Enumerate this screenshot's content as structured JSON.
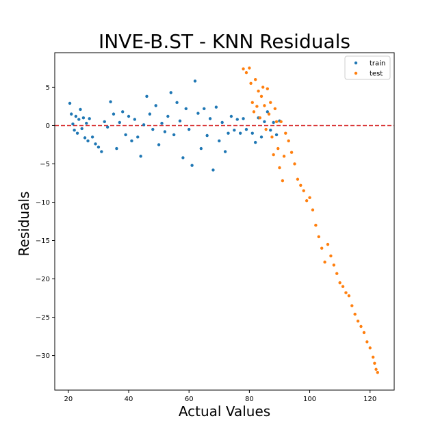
{
  "chart_data": {
    "type": "scatter",
    "title": "INVE-B.ST - KNN Residuals",
    "xlabel": "Actual Values",
    "ylabel": "Residuals",
    "xlim": [
      15.5,
      128
    ],
    "ylim": [
      -34.5,
      9.5
    ],
    "xticks": [
      20,
      40,
      60,
      80,
      100,
      120
    ],
    "yticks": [
      5,
      0,
      -5,
      -10,
      -15,
      -20,
      -25,
      -30
    ],
    "legend": {
      "placement": "top-right"
    },
    "reference_line": {
      "y": 0,
      "color": "#d62728",
      "style": "dashed"
    },
    "series": [
      {
        "name": "train",
        "color": "#1f77b4",
        "points": [
          [
            20.5,
            2.9
          ],
          [
            21.0,
            1.5
          ],
          [
            21.5,
            0.2
          ],
          [
            22.0,
            -0.6
          ],
          [
            22.5,
            1.2
          ],
          [
            23.0,
            -1.0
          ],
          [
            23.5,
            0.8
          ],
          [
            24.0,
            2.1
          ],
          [
            24.5,
            -0.4
          ],
          [
            25.0,
            1.0
          ],
          [
            25.5,
            -1.6
          ],
          [
            26.0,
            0.3
          ],
          [
            26.5,
            -2.0
          ],
          [
            27.0,
            0.9
          ],
          [
            28.0,
            -1.5
          ],
          [
            29.0,
            -2.4
          ],
          [
            30.0,
            -2.8
          ],
          [
            31.0,
            -3.4
          ],
          [
            32.0,
            0.5
          ],
          [
            33.0,
            -0.2
          ],
          [
            34.0,
            3.1
          ],
          [
            35.0,
            1.5
          ],
          [
            36.0,
            -3.0
          ],
          [
            37.0,
            0.4
          ],
          [
            38.0,
            1.8
          ],
          [
            39.0,
            -1.2
          ],
          [
            40.0,
            1.2
          ],
          [
            41.0,
            -2.0
          ],
          [
            42.0,
            0.8
          ],
          [
            43.0,
            -1.5
          ],
          [
            44.0,
            -4.0
          ],
          [
            45.0,
            0.1
          ],
          [
            46.0,
            3.8
          ],
          [
            47.0,
            1.5
          ],
          [
            48.0,
            -0.5
          ],
          [
            49.0,
            2.6
          ],
          [
            50.0,
            -2.5
          ],
          [
            51.0,
            0.3
          ],
          [
            52.0,
            -0.8
          ],
          [
            53.0,
            1.2
          ],
          [
            54.0,
            4.3
          ],
          [
            55.0,
            -1.2
          ],
          [
            56.0,
            3.0
          ],
          [
            57.0,
            0.6
          ],
          [
            58.0,
            -4.2
          ],
          [
            59.0,
            2.2
          ],
          [
            60.0,
            -0.5
          ],
          [
            61.0,
            -5.2
          ],
          [
            62.0,
            5.8
          ],
          [
            63.0,
            1.6
          ],
          [
            64.0,
            -3.0
          ],
          [
            65.0,
            2.2
          ],
          [
            66.0,
            -1.3
          ],
          [
            67.0,
            0.9
          ],
          [
            68.0,
            -5.8
          ],
          [
            69.0,
            2.4
          ],
          [
            70.0,
            -2.0
          ],
          [
            71.0,
            0.4
          ],
          [
            72.0,
            -3.4
          ],
          [
            73.0,
            -1.0
          ],
          [
            74.0,
            1.2
          ],
          [
            75.0,
            -0.6
          ],
          [
            76.0,
            0.8
          ],
          [
            77.0,
            -1.0
          ],
          [
            78.0,
            0.9
          ],
          [
            79.0,
            -0.5
          ],
          [
            81.0,
            -1.0
          ],
          [
            82.0,
            -2.2
          ],
          [
            83.0,
            1.0
          ],
          [
            84.0,
            -1.5
          ],
          [
            85.0,
            0.5
          ],
          [
            86.0,
            1.8
          ],
          [
            87.0,
            -0.6
          ],
          [
            88.0,
            0.4
          ],
          [
            89.0,
            -1.2
          ],
          [
            90.0,
            0.6
          ]
        ]
      },
      {
        "name": "test",
        "color": "#ff7f0e",
        "points": [
          [
            78.0,
            7.4
          ],
          [
            79.0,
            6.9
          ],
          [
            80.0,
            7.5
          ],
          [
            80.5,
            5.5
          ],
          [
            81.0,
            3.0
          ],
          [
            81.5,
            1.8
          ],
          [
            82.0,
            6.0
          ],
          [
            82.5,
            2.5
          ],
          [
            83.0,
            4.5
          ],
          [
            83.5,
            1.0
          ],
          [
            84.0,
            3.8
          ],
          [
            84.5,
            5.0
          ],
          [
            85.0,
            2.6
          ],
          [
            85.5,
            -0.5
          ],
          [
            86.0,
            4.8
          ],
          [
            86.5,
            1.5
          ],
          [
            87.0,
            3.0
          ],
          [
            87.5,
            -1.5
          ],
          [
            88.0,
            -3.8
          ],
          [
            88.5,
            2.2
          ],
          [
            89.0,
            0.5
          ],
          [
            89.5,
            -3.0
          ],
          [
            90.0,
            -5.5
          ],
          [
            90.5,
            0.5
          ],
          [
            91.0,
            -7.2
          ],
          [
            91.5,
            -4.0
          ],
          [
            92.0,
            -1.0
          ],
          [
            93.0,
            -2.0
          ],
          [
            94.0,
            -3.5
          ],
          [
            95.0,
            -5.0
          ],
          [
            96.0,
            -7.0
          ],
          [
            97.0,
            -7.8
          ],
          [
            98.0,
            -8.5
          ],
          [
            99.0,
            -9.8
          ],
          [
            100.0,
            -9.4
          ],
          [
            101.0,
            -11.0
          ],
          [
            102.0,
            -13.0
          ],
          [
            103.0,
            -14.5
          ],
          [
            104.0,
            -16.0
          ],
          [
            105.0,
            -17.8
          ],
          [
            106.0,
            -15.5
          ],
          [
            107.0,
            -17.0
          ],
          [
            108.0,
            -18.2
          ],
          [
            109.0,
            -19.3
          ],
          [
            110.0,
            -20.5
          ],
          [
            111.0,
            -21.0
          ],
          [
            112.0,
            -21.8
          ],
          [
            113.0,
            -22.2
          ],
          [
            114.0,
            -23.5
          ],
          [
            115.0,
            -24.6
          ],
          [
            116.0,
            -25.5
          ],
          [
            117.0,
            -26.2
          ],
          [
            118.0,
            -27.0
          ],
          [
            119.0,
            -28.2
          ],
          [
            120.0,
            -29.0
          ],
          [
            121.0,
            -30.2
          ],
          [
            121.5,
            -31.0
          ],
          [
            122.0,
            -31.8
          ],
          [
            122.5,
            -32.2
          ]
        ]
      }
    ]
  }
}
